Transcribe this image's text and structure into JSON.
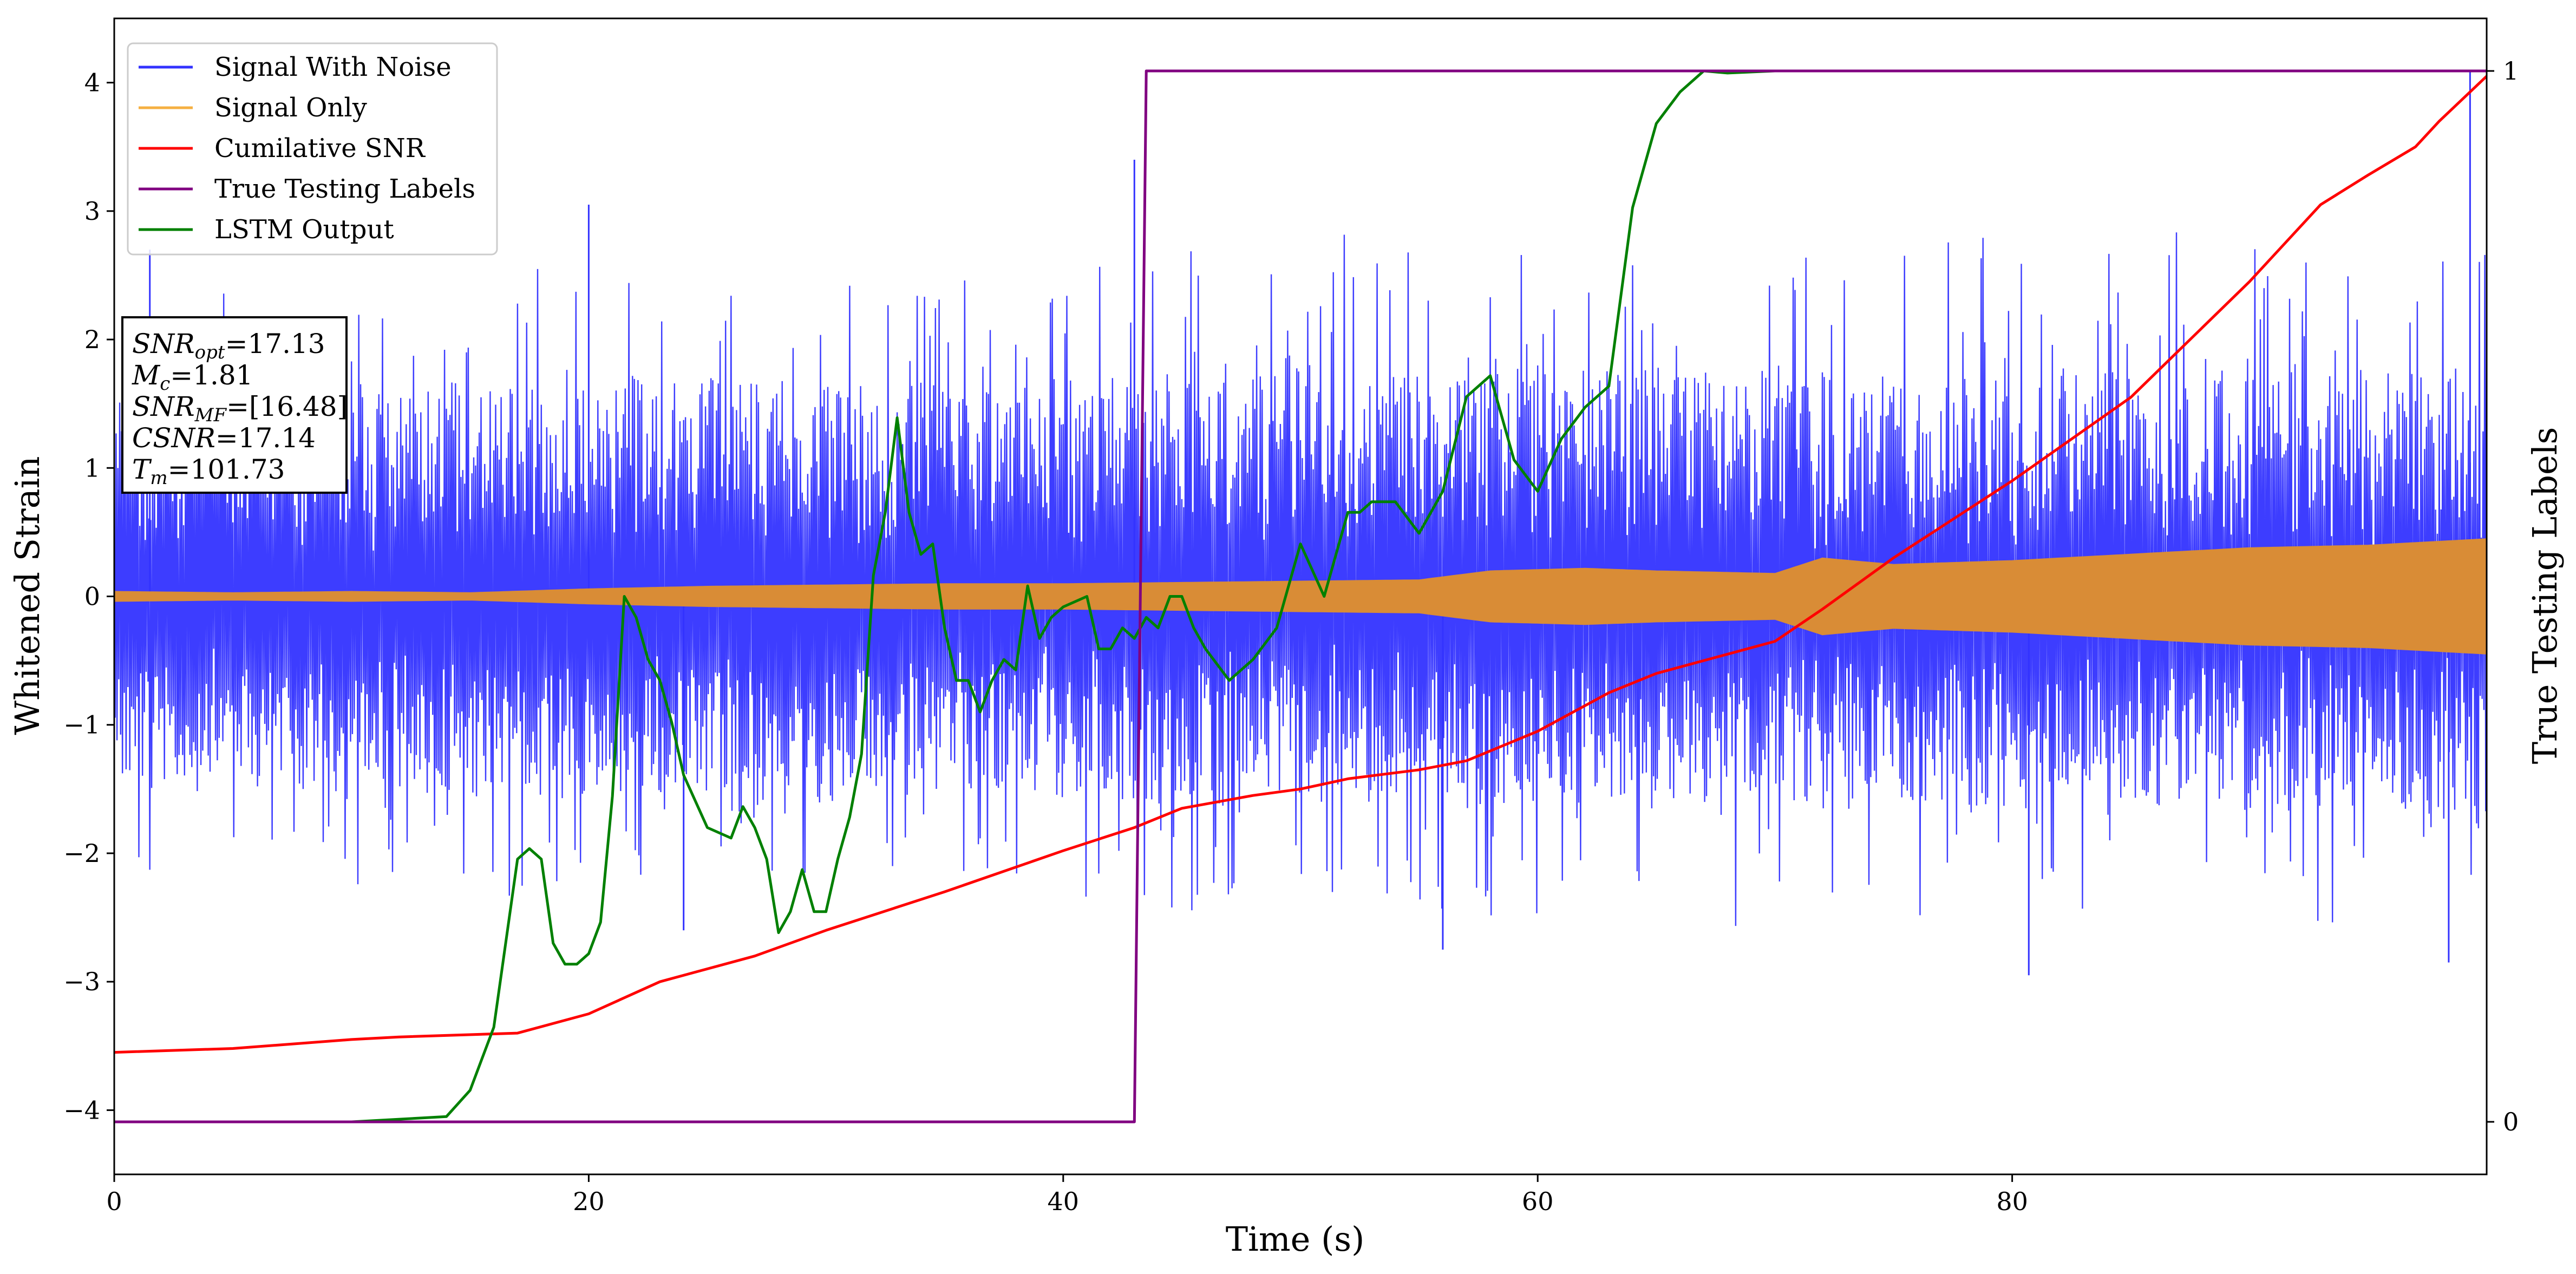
{
  "chart_data": {
    "type": "line",
    "xlabel": "Time (s)",
    "ylabel": "Whitened Strain",
    "ylabel_right": "True Testing Labels",
    "xlim": [
      0,
      100
    ],
    "ylim": [
      -4.5,
      4.5
    ],
    "ylim_right": [
      -0.05,
      1.05
    ],
    "xticks": [
      0,
      20,
      40,
      60,
      80
    ],
    "yticks": [
      -4,
      -3,
      -2,
      -1,
      0,
      1,
      2,
      3,
      4
    ],
    "yticks_right": [
      0,
      1
    ],
    "legend_position": "upper-left",
    "legend": [
      {
        "label": "Signal With Noise",
        "color": "#3333ff"
      },
      {
        "label": "Signal Only",
        "color": "#f5b042"
      },
      {
        "label": "Cumilative SNR",
        "color": "#ff0000"
      },
      {
        "label": "True Testing Labels",
        "color": "#800080"
      },
      {
        "label": "LSTM Output",
        "color": "#008000"
      }
    ],
    "annotation": [
      {
        "name": "SNR",
        "sub": "opt",
        "value": "=17.13"
      },
      {
        "name": "M",
        "sub": "c",
        "value": "=1.81"
      },
      {
        "name": "SNR",
        "sub": "MF",
        "value": "=[16.48]"
      },
      {
        "name": "CSNR",
        "sub": "",
        "value": "=17.14"
      },
      {
        "name": "T",
        "sub": "m",
        "value": "=101.73"
      }
    ],
    "series": [
      {
        "name": "Signal With Noise",
        "axis": "left",
        "color": "#3333ff",
        "style": "noise",
        "envelope_x": [
          0,
          10,
          20,
          30,
          40,
          43,
          50,
          60,
          70,
          80,
          90,
          100
        ],
        "envelope_hi": [
          2.4,
          2.5,
          2.6,
          2.6,
          2.4,
          2.8,
          2.8,
          2.9,
          2.8,
          2.8,
          2.9,
          2.7
        ],
        "envelope_lo": [
          -2.2,
          -2.3,
          -2.4,
          -2.4,
          -2.3,
          -2.5,
          -2.4,
          -2.6,
          -2.6,
          -2.5,
          -2.6,
          -2.6
        ],
        "spikes": [
          [
            1.5,
            2.7
          ],
          [
            20,
            3.05
          ],
          [
            43,
            3.4
          ],
          [
            99.3,
            4.1
          ],
          [
            80.7,
            -2.95
          ],
          [
            24,
            -2.6
          ],
          [
            98.4,
            -2.85
          ],
          [
            56,
            -2.75
          ]
        ]
      },
      {
        "name": "Signal Only",
        "axis": "left",
        "color": "#d98c36",
        "style": "band",
        "x": [
          0,
          5,
          10,
          15,
          20,
          25,
          30,
          35,
          40,
          45,
          50,
          55,
          58,
          62,
          65,
          70,
          72,
          75,
          80,
          85,
          90,
          95,
          100
        ],
        "amp": [
          0.04,
          0.03,
          0.04,
          0.03,
          0.06,
          0.08,
          0.09,
          0.1,
          0.1,
          0.11,
          0.12,
          0.13,
          0.2,
          0.22,
          0.2,
          0.18,
          0.3,
          0.25,
          0.28,
          0.33,
          0.38,
          0.4,
          0.45
        ]
      },
      {
        "name": "Cumilative SNR",
        "axis": "left",
        "color": "#ff0000",
        "x": [
          0,
          5,
          10,
          12,
          17,
          20,
          23,
          27,
          30,
          35,
          40,
          43,
          45,
          48,
          50,
          52,
          55,
          57,
          60,
          63,
          65,
          70,
          72,
          75,
          80,
          85,
          90,
          93,
          95,
          97,
          98,
          100
        ],
        "y": [
          -3.55,
          -3.52,
          -3.45,
          -3.43,
          -3.4,
          -3.25,
          -3.0,
          -2.8,
          -2.6,
          -2.3,
          -1.98,
          -1.8,
          -1.65,
          -1.55,
          -1.5,
          -1.42,
          -1.35,
          -1.28,
          -1.05,
          -0.75,
          -0.6,
          -0.35,
          -0.1,
          0.3,
          0.9,
          1.55,
          2.45,
          3.05,
          3.28,
          3.5,
          3.7,
          4.05
        ]
      },
      {
        "name": "True Testing Labels",
        "axis": "right",
        "color": "#800080",
        "x": [
          0,
          43.0,
          43.5,
          100
        ],
        "y": [
          0,
          0,
          1,
          1
        ]
      },
      {
        "name": "LSTM Output",
        "axis": "right",
        "color": "#008000",
        "x": [
          0,
          10,
          14,
          15,
          16,
          17,
          17.5,
          18,
          18.5,
          19,
          19.5,
          20,
          20.5,
          21,
          21.5,
          22,
          22.5,
          23,
          23.5,
          24,
          25,
          26,
          26.5,
          27,
          27.5,
          28,
          28.5,
          29,
          29.5,
          30,
          30.5,
          31,
          31.5,
          32,
          32.5,
          33,
          33.5,
          34,
          34.5,
          35,
          35.5,
          36,
          36.5,
          37,
          37.5,
          38,
          38.5,
          39,
          39.5,
          40,
          41,
          41.5,
          42,
          42.5,
          43,
          43.5,
          44,
          44.5,
          45,
          45.5,
          46,
          47,
          48,
          49,
          50,
          51,
          52,
          52.5,
          53,
          54,
          55,
          56,
          57,
          58,
          59,
          60,
          61,
          62,
          63,
          64,
          65,
          66,
          67,
          68,
          70,
          72,
          75,
          78,
          80,
          100
        ],
        "y": [
          0,
          0,
          0.005,
          0.03,
          0.09,
          0.25,
          0.26,
          0.25,
          0.17,
          0.15,
          0.15,
          0.16,
          0.19,
          0.31,
          0.5,
          0.48,
          0.44,
          0.42,
          0.38,
          0.33,
          0.28,
          0.27,
          0.3,
          0.28,
          0.25,
          0.18,
          0.2,
          0.24,
          0.2,
          0.2,
          0.25,
          0.29,
          0.35,
          0.52,
          0.58,
          0.67,
          0.58,
          0.54,
          0.55,
          0.47,
          0.42,
          0.42,
          0.39,
          0.42,
          0.44,
          0.43,
          0.51,
          0.46,
          0.48,
          0.49,
          0.5,
          0.45,
          0.45,
          0.47,
          0.46,
          0.48,
          0.47,
          0.5,
          0.5,
          0.47,
          0.45,
          0.42,
          0.44,
          0.47,
          0.55,
          0.5,
          0.58,
          0.58,
          0.59,
          0.59,
          0.56,
          0.6,
          0.69,
          0.71,
          0.63,
          0.6,
          0.65,
          0.68,
          0.7,
          0.87,
          0.95,
          0.98,
          1.0,
          0.998,
          1.0,
          1.0,
          1.0,
          1.0,
          1.0,
          1.0
        ]
      }
    ]
  }
}
